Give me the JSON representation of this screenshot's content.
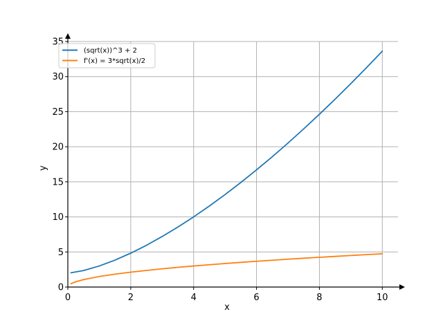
{
  "chart_data": {
    "type": "line",
    "xlabel": "x",
    "ylabel": "y",
    "xlim": [
      0,
      10.5
    ],
    "ylim": [
      0,
      35
    ],
    "x_ticks": [
      0,
      2,
      4,
      6,
      8,
      10
    ],
    "y_ticks": [
      0,
      5,
      10,
      15,
      20,
      25,
      30,
      35
    ],
    "grid": true,
    "legend": "top-left",
    "series": [
      {
        "name": "(sqrt(x))^3 + 2",
        "color": "#1f77b4",
        "x": [
          0.1,
          0.5,
          1,
          1.5,
          2,
          2.5,
          3,
          3.5,
          4,
          4.5,
          5,
          5.5,
          6,
          6.5,
          7,
          7.5,
          8,
          8.5,
          9,
          9.5,
          10
        ],
        "values": [
          2.03,
          2.35,
          3.0,
          3.84,
          4.83,
          5.95,
          7.2,
          8.55,
          10.0,
          11.55,
          13.18,
          14.9,
          16.7,
          18.57,
          20.52,
          22.54,
          24.63,
          26.78,
          29.0,
          31.28,
          33.62
        ]
      },
      {
        "name": "f'(x) = 3*sqrt(x)/2",
        "color": "#ff7f0e",
        "x": [
          0.1,
          0.25,
          0.5,
          1,
          1.5,
          2,
          2.5,
          3,
          3.5,
          4,
          4.5,
          5,
          5.5,
          6,
          6.5,
          7,
          7.5,
          8,
          8.5,
          9,
          9.5,
          10
        ],
        "values": [
          0.47,
          0.75,
          1.06,
          1.5,
          1.84,
          2.12,
          2.37,
          2.6,
          2.81,
          3.0,
          3.18,
          3.35,
          3.52,
          3.67,
          3.82,
          3.97,
          4.11,
          4.24,
          4.37,
          4.5,
          4.62,
          4.74
        ]
      }
    ]
  }
}
